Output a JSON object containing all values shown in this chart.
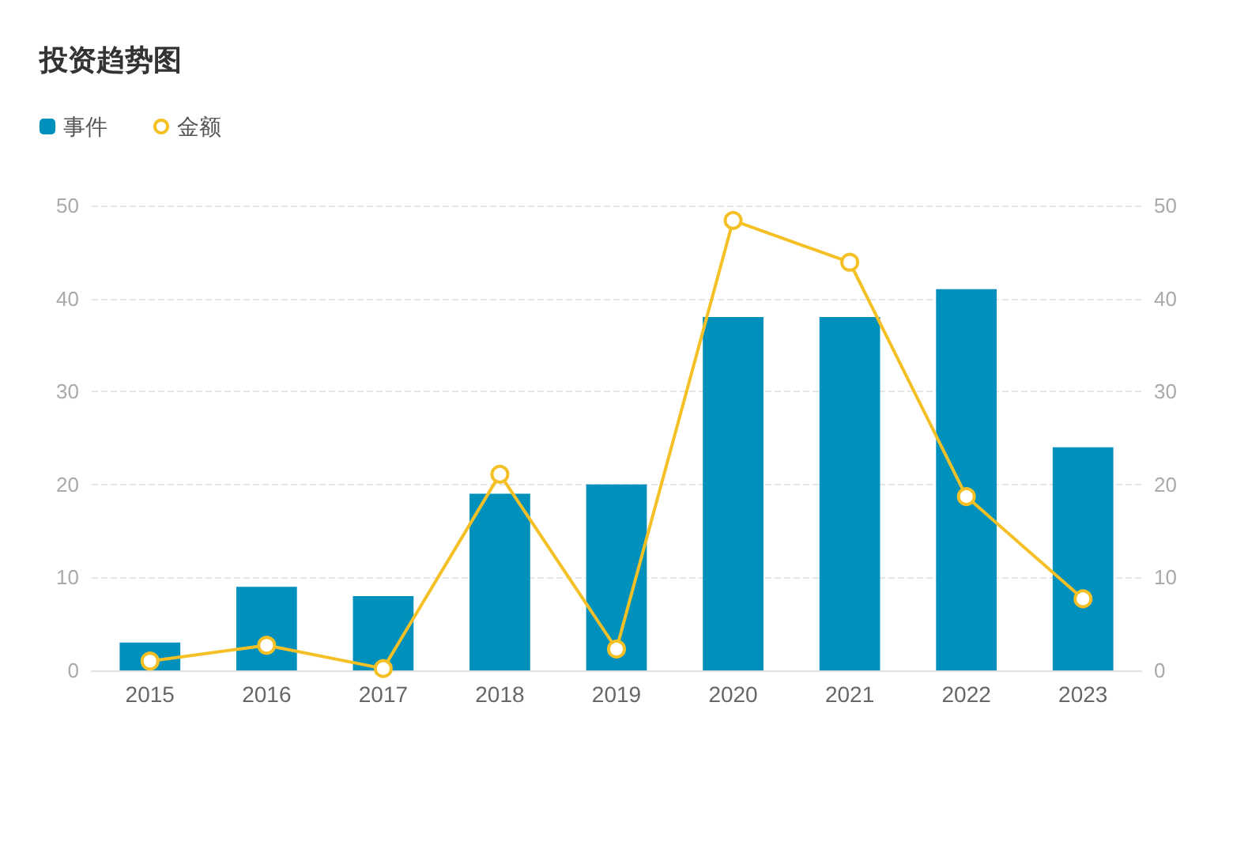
{
  "chart_data": {
    "type": "bar",
    "title": "投资趋势图",
    "categories": [
      "2015",
      "2016",
      "2017",
      "2018",
      "2019",
      "2020",
      "2021",
      "2022",
      "2023"
    ],
    "series": [
      {
        "name": "事件",
        "color": "#0090bc",
        "values": [
          3,
          9,
          8,
          19,
          20,
          38,
          38,
          41,
          24
        ]
      },
      {
        "name": "金额",
        "type": "line",
        "axis": "y2",
        "color": "#f5c026",
        "marker": "circle",
        "values": [
          1,
          2.7,
          0.2,
          21.1,
          2.3,
          48.4,
          43.9,
          18.7,
          7.7
        ]
      }
    ],
    "ylim": [
      0,
      50
    ],
    "yticks": [
      0,
      10,
      20,
      30,
      40,
      50
    ],
    "y2lim": [
      0,
      50
    ],
    "y2ticks": [
      0,
      10,
      20,
      30,
      40,
      50
    ],
    "grid": "y",
    "legend": "top left"
  }
}
